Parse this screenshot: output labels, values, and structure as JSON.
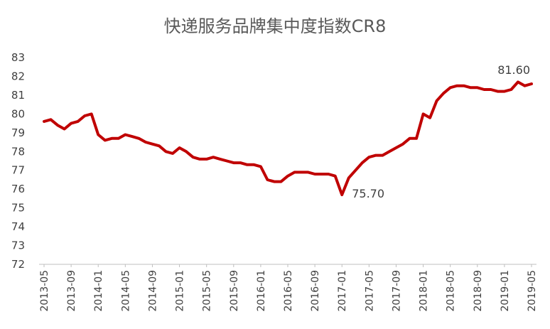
{
  "chart_data": {
    "type": "line",
    "title": "快递服务品牌集中度指数CR8",
    "xlabel": "",
    "ylabel": "",
    "ylim": [
      72,
      83
    ],
    "y_ticks": [
      "72",
      "73",
      "74",
      "75",
      "76",
      "77",
      "78",
      "79",
      "80",
      "81",
      "82",
      "83"
    ],
    "x_tick_labels": [
      "2013-05",
      "2013-09",
      "2014-01",
      "2014-05",
      "2014-09",
      "2015-01",
      "2015-05",
      "2015-09",
      "2016-01",
      "2016-05",
      "2016-09",
      "2017-01",
      "2017-05",
      "2017-09",
      "2018-01",
      "2018-05",
      "2018-09",
      "2019-01",
      "2019-05"
    ],
    "grid": false,
    "legend": "none",
    "line_color": "#C00000",
    "series": [
      {
        "x": [
          "2013-05",
          "2013-06",
          "2013-07",
          "2013-08",
          "2013-09",
          "2013-10",
          "2013-11",
          "2013-12",
          "2014-01",
          "2014-02",
          "2014-03",
          "2014-04",
          "2014-05",
          "2014-06",
          "2014-07",
          "2014-08",
          "2014-09",
          "2014-10",
          "2014-11",
          "2014-12",
          "2015-01",
          "2015-02",
          "2015-03",
          "2015-04",
          "2015-05",
          "2015-06",
          "2015-07",
          "2015-08",
          "2015-09",
          "2015-10",
          "2015-11",
          "2015-12",
          "2016-01",
          "2016-02",
          "2016-03",
          "2016-04",
          "2016-05",
          "2016-06",
          "2016-07",
          "2016-08",
          "2016-09",
          "2016-10",
          "2016-11",
          "2016-12",
          "2017-01",
          "2017-02",
          "2017-03",
          "2017-04",
          "2017-05",
          "2017-06",
          "2017-07",
          "2017-08",
          "2017-09",
          "2017-10",
          "2017-11",
          "2017-12",
          "2018-01",
          "2018-02",
          "2018-03",
          "2018-04",
          "2018-05",
          "2018-06",
          "2018-07",
          "2018-08",
          "2018-09",
          "2018-10",
          "2018-11",
          "2018-12",
          "2019-01",
          "2019-02",
          "2019-03",
          "2019-04",
          "2019-05"
        ],
        "values": [
          79.6,
          79.7,
          79.4,
          79.2,
          79.5,
          79.6,
          79.9,
          80.0,
          78.9,
          78.6,
          78.7,
          78.7,
          78.9,
          78.8,
          78.7,
          78.5,
          78.4,
          78.3,
          78.0,
          77.9,
          78.2,
          78.0,
          77.7,
          77.6,
          77.6,
          77.7,
          77.6,
          77.5,
          77.4,
          77.4,
          77.3,
          77.3,
          77.2,
          76.5,
          76.4,
          76.4,
          76.7,
          76.9,
          76.9,
          76.9,
          76.8,
          76.8,
          76.8,
          76.7,
          75.7,
          76.6,
          77.0,
          77.4,
          77.7,
          77.8,
          77.8,
          78.0,
          78.2,
          78.4,
          78.7,
          78.7,
          80.0,
          79.8,
          80.7,
          81.1,
          81.4,
          81.5,
          81.5,
          81.4,
          81.4,
          81.3,
          81.3,
          81.2,
          81.2,
          81.3,
          81.7,
          81.5,
          81.6
        ]
      }
    ],
    "annotations": [
      {
        "x": "2017-01",
        "y": 75.7,
        "text": "75.70"
      },
      {
        "x": "2019-05",
        "y": 81.6,
        "text": "81.60"
      }
    ]
  }
}
